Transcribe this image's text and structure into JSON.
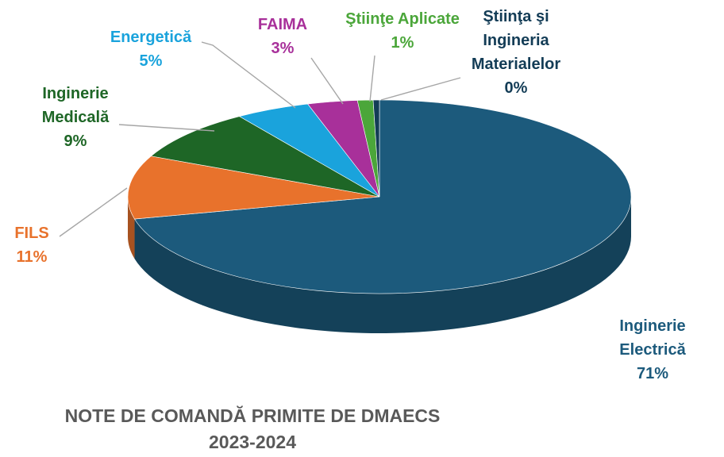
{
  "chart_data": {
    "type": "pie",
    "title_lines": [
      "NOTE DE COMANDĂ PRIMITE DE DMAECS",
      "2023-2024"
    ],
    "slices": [
      {
        "label_lines": [
          "Inginerie",
          "Electrică"
        ],
        "percent_label": "71%",
        "value": 71.3,
        "color": "#1c5a7c"
      },
      {
        "label_lines": [
          "FILS"
        ],
        "percent_label": "11%",
        "value": 10.6,
        "color": "#e8722c"
      },
      {
        "label_lines": [
          "Inginerie",
          "Medicală"
        ],
        "percent_label": "9%",
        "value": 8.7,
        "color": "#1e6626"
      },
      {
        "label_lines": [
          "Energetică"
        ],
        "percent_label": "5%",
        "value": 4.8,
        "color": "#1aa3dc"
      },
      {
        "label_lines": [
          "FAIMA"
        ],
        "percent_label": "3%",
        "value": 3.2,
        "color": "#a8309a"
      },
      {
        "label_lines": [
          "Ştiinţe Aplicate"
        ],
        "percent_label": "1%",
        "value": 1.0,
        "color": "#4ba63a"
      },
      {
        "label_lines": [
          "Ştiinţa şi",
          "Ingineria",
          "Materialelor"
        ],
        "percent_label": "0%",
        "value": 0.4,
        "color": "#133c56"
      }
    ]
  }
}
